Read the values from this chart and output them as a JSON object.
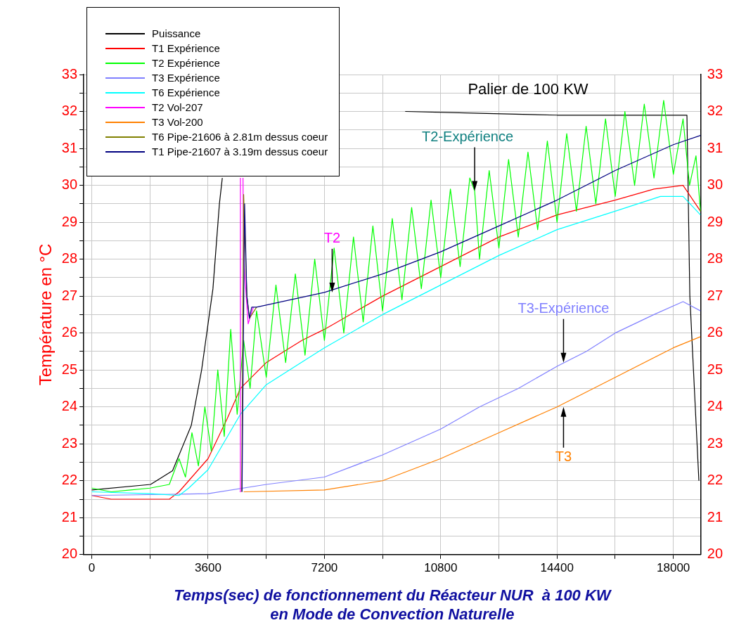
{
  "chart_data": {
    "type": "line",
    "xlabel": "Temps(sec) de fonctionnement du Réacteur NUR  à 100 KW\nen Mode de Convection Naturelle",
    "ylabel": "Température en °C",
    "xlim": [
      -250,
      18850
    ],
    "ylim": [
      20,
      33
    ],
    "y2lim": [
      20,
      33
    ],
    "xticks": [
      0,
      {
        "value": 1800,
        "label": null
      },
      3600,
      {
        "value": 5400,
        "label": null
      },
      7200,
      {
        "value": 9000,
        "label": null
      },
      10800,
      {
        "value": 12600,
        "label": null
      },
      14400,
      {
        "value": 16200,
        "label": null
      },
      18000
    ],
    "yticks": [
      20,
      {
        "value": 20.5,
        "label": null
      },
      21,
      {
        "value": 21.5,
        "label": null
      },
      22,
      {
        "value": 22.5,
        "label": null
      },
      23,
      {
        "value": 23.5,
        "label": null
      },
      24,
      {
        "value": 24.5,
        "label": null
      },
      25,
      {
        "value": 25.5,
        "label": null
      },
      26,
      {
        "value": 26.5,
        "label": null
      },
      27,
      {
        "value": 27.5,
        "label": null
      },
      28,
      {
        "value": 28.5,
        "label": null
      },
      29,
      {
        "value": 29.5,
        "label": null
      },
      30,
      {
        "value": 30.5,
        "label": null
      },
      31,
      {
        "value": 31.5,
        "label": null
      },
      32,
      {
        "value": 32.5,
        "label": null
      },
      33
    ],
    "y2ticks": [
      20,
      21,
      22,
      23,
      24,
      25,
      26,
      27,
      28,
      29,
      30,
      31,
      32,
      33
    ],
    "grid": true,
    "legend": "top left",
    "marker": "none",
    "line_style": "solid",
    "annotations": [
      "Palier de 100 KW",
      {
        "text": "T2-Expérience",
        "x": 11850,
        "y": 29.85
      },
      {
        "text": "T2",
        "x": 7440,
        "y": 27.1
      },
      {
        "text": "T3-Expérience",
        "x": 14600,
        "y": 25.2
      },
      {
        "text": "T3",
        "x": 14600,
        "y": 24.0
      }
    ],
    "series": [
      {
        "name": "Puissance",
        "color": "#000000",
        "x": [
          0,
          1820,
          2500,
          3080,
          3400,
          3750,
          3950,
          4040,
          4100,
          9700,
          12000,
          14400,
          16200,
          18420,
          18510,
          18790
        ],
        "values": [
          21.75,
          21.9,
          22.27,
          23.5,
          25.0,
          27.2,
          29.5,
          30.2,
          null,
          32.0,
          31.95,
          31.9,
          31.9,
          31.9,
          27.0,
          22.0
        ]
      },
      {
        "name": "T1 Expérience",
        "color": "#ff0000",
        "x": [
          0,
          600,
          1200,
          2400,
          2700,
          3000,
          3600,
          4200,
          4600,
          5400,
          6500,
          7200,
          9000,
          10800,
          12600,
          14400,
          16200,
          17400,
          18300,
          18840
        ],
        "values": [
          21.6,
          21.5,
          21.5,
          21.5,
          21.7,
          22.0,
          22.6,
          23.7,
          24.5,
          25.2,
          25.8,
          26.1,
          27.0,
          27.8,
          28.6,
          29.2,
          29.6,
          29.9,
          30.0,
          29.3
        ]
      },
      {
        "name": "T2 Expérience",
        "color": "#00ff00",
        "x": [
          0,
          600,
          1200,
          1800,
          2400,
          2700,
          2900,
          3100,
          3300,
          3500,
          3700,
          3900,
          4100,
          4300,
          4500,
          4700,
          4900,
          5100,
          5400,
          5700,
          6000,
          6300,
          6600,
          6900,
          7200,
          7500,
          7800,
          8100,
          8400,
          8700,
          9000,
          9300,
          9600,
          9900,
          10200,
          10500,
          10800,
          11100,
          11400,
          11700,
          11850,
          12000,
          12300,
          12600,
          12900,
          13200,
          13500,
          13800,
          14100,
          14400,
          14700,
          15000,
          15300,
          15600,
          15900,
          16200,
          16500,
          16800,
          17100,
          17400,
          17700,
          18000,
          18300,
          18500,
          18700,
          18840
        ],
        "values": [
          21.8,
          21.7,
          21.75,
          21.8,
          21.9,
          22.6,
          22.1,
          23.3,
          22.4,
          24.0,
          22.8,
          25.0,
          23.2,
          26.1,
          23.8,
          25.8,
          24.5,
          26.6,
          24.8,
          27.3,
          25.2,
          27.6,
          25.4,
          28.0,
          25.8,
          28.3,
          26.0,
          28.6,
          26.3,
          28.9,
          26.6,
          29.1,
          26.9,
          29.4,
          27.2,
          29.6,
          27.5,
          29.9,
          27.8,
          30.2,
          29.85,
          28.0,
          30.4,
          28.3,
          30.7,
          28.6,
          30.9,
          28.8,
          31.2,
          29.0,
          31.4,
          29.3,
          31.6,
          29.5,
          31.8,
          29.7,
          32.0,
          30.0,
          32.2,
          30.2,
          32.3,
          30.3,
          31.8,
          30.0,
          30.8,
          29.3
        ]
      },
      {
        "name": "T3 Expérience",
        "color": "#8080ff",
        "x": [
          0,
          3600,
          5400,
          7200,
          9000,
          10800,
          12000,
          13200,
          14400,
          15300,
          16200,
          17400,
          18300,
          18840
        ],
        "values": [
          21.6,
          21.65,
          21.9,
          22.1,
          22.7,
          23.4,
          24.0,
          24.5,
          25.1,
          25.5,
          26.0,
          26.5,
          26.85,
          26.6
        ]
      },
      {
        "name": "T6 Expérience",
        "color": "#00ffff",
        "x": [
          0,
          1800,
          2700,
          3000,
          3600,
          4200,
          4600,
          5400,
          7200,
          9000,
          10800,
          12600,
          14400,
          16200,
          17600,
          18300,
          18840
        ],
        "values": [
          21.7,
          21.65,
          21.6,
          21.8,
          22.3,
          23.2,
          23.8,
          24.6,
          25.6,
          26.5,
          27.3,
          28.1,
          28.8,
          29.3,
          29.7,
          29.7,
          29.2
        ]
      },
      {
        "name": "T2 Vol-207",
        "color": "#ff00ff",
        "x": [
          4580,
          4600,
          4620,
          4680,
          4700,
          4840,
          5000
        ],
        "values": [
          21.7,
          30.2,
          null,
          30.2,
          28.0,
          26.25,
          26.7
        ]
      },
      {
        "name": "T3 Vol-200",
        "color": "#ff8000",
        "x": [
          4700,
          7200,
          9000,
          10800,
          12600,
          14400,
          16200,
          18000,
          18840
        ],
        "values": [
          21.7,
          21.75,
          22.0,
          22.6,
          23.3,
          24.0,
          24.8,
          25.6,
          25.9
        ]
      },
      {
        "name": "T6 Pipe-21606 à 2.81m dessus coeur",
        "color": "#808000",
        "x": [
          4640,
          4700,
          4800,
          4880,
          5100
        ],
        "values": [
          21.7,
          29.75,
          27.0,
          26.4,
          26.7
        ]
      },
      {
        "name": "T1 Pipe-21607 à 3.19m dessus coeur",
        "color": "#000080",
        "x": [
          4650,
          4730,
          4800,
          4880,
          4950,
          5100,
          7200,
          9000,
          10800,
          12600,
          14400,
          16200,
          18000,
          18840
        ],
        "values": [
          21.7,
          29.5,
          27.0,
          26.4,
          26.7,
          26.7,
          27.1,
          27.6,
          28.2,
          28.9,
          29.6,
          30.4,
          31.1,
          31.35
        ]
      }
    ]
  }
}
